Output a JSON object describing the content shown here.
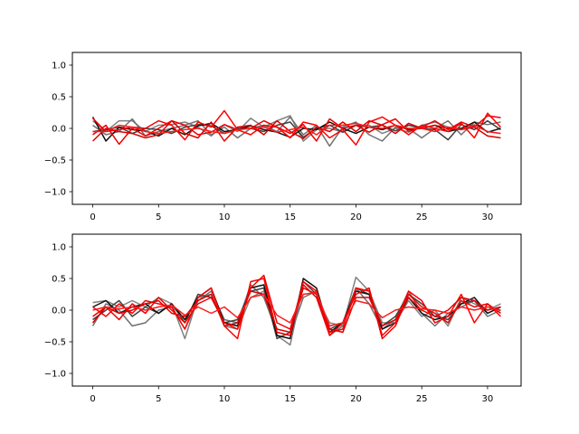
{
  "chart_data": [
    {
      "type": "line",
      "title": "",
      "xlabel": "",
      "ylabel": "",
      "xlim": [
        -1.55,
        32.55
      ],
      "ylim": [
        -1.2,
        1.2
      ],
      "xticks": [
        0,
        5,
        10,
        15,
        20,
        25,
        30
      ],
      "xtick_labels": [
        "0",
        "5",
        "10",
        "15",
        "20",
        "25",
        "30"
      ],
      "yticks": [
        -1.0,
        -0.5,
        0.0,
        0.5,
        1.0
      ],
      "ytick_labels": [
        "−1.0",
        "−0.5",
        "0.0",
        "0.5",
        "1.0"
      ],
      "grid": false,
      "x": [
        0,
        1,
        2,
        3,
        4,
        5,
        6,
        7,
        8,
        9,
        10,
        11,
        12,
        13,
        14,
        15,
        16,
        17,
        18,
        19,
        20,
        21,
        22,
        23,
        24,
        25,
        26,
        27,
        28,
        29,
        30,
        31
      ],
      "series": [
        {
          "color": "#808080",
          "values": [
            0.12,
            -0.05,
            0.12,
            0.12,
            -0.05,
            0.05,
            0.06,
            0.1,
            0.02,
            -0.12,
            0.06,
            -0.05,
            0.16,
            0.02,
            0.12,
            0.2,
            -0.2,
            -0.02,
            0.0,
            -0.06,
            0.05,
            0.05,
            -0.08,
            0.0,
            -0.06,
            0.05,
            0.1,
            0.02,
            0.0,
            0.06,
            -0.05,
            -0.08
          ]
        },
        {
          "color": "#707070",
          "values": [
            0.05,
            -0.1,
            -0.05,
            0.15,
            -0.12,
            -0.05,
            0.0,
            0.05,
            0.12,
            -0.1,
            0.02,
            -0.15,
            0.0,
            0.05,
            -0.05,
            0.18,
            -0.1,
            0.05,
            -0.28,
            0.02,
            0.1,
            -0.1,
            -0.2,
            0.02,
            0.0,
            -0.15,
            0.0,
            0.12,
            -0.1,
            0.1,
            0.06,
            0.1
          ]
        },
        {
          "color": "#404040",
          "values": [
            -0.05,
            -0.02,
            0.02,
            -0.08,
            0.0,
            -0.02,
            -0.08,
            0.02,
            0.06,
            0.04,
            -0.08,
            0.0,
            0.0,
            -0.05,
            0.05,
            0.1,
            -0.14,
            0.0,
            0.05,
            -0.06,
            0.05,
            0.02,
            0.05,
            -0.04,
            0.05,
            0.0,
            -0.02,
            -0.18,
            0.06,
            -0.02,
            0.12,
            -0.02
          ]
        },
        {
          "color": "#101010",
          "values": [
            0.18,
            -0.2,
            0.02,
            -0.02,
            -0.04,
            -0.12,
            0.0,
            -0.1,
            0.04,
            0.08,
            -0.05,
            -0.02,
            0.04,
            -0.02,
            -0.06,
            -0.14,
            0.0,
            -0.02,
            0.1,
            0.0,
            -0.08,
            0.02,
            -0.02,
            0.05,
            -0.02,
            0.0,
            0.05,
            -0.05,
            0.0,
            0.1,
            -0.06,
            0.0
          ]
        },
        {
          "color": "#ff0000",
          "values": [
            0.16,
            -0.05,
            -0.02,
            0.02,
            0.0,
            0.12,
            0.05,
            -0.18,
            0.1,
            0.02,
            0.28,
            -0.02,
            -0.1,
            0.05,
            0.02,
            -0.15,
            0.1,
            0.05,
            -0.15,
            -0.02,
            -0.26,
            0.1,
            0.18,
            0.05,
            -0.1,
            0.05,
            0.0,
            -0.05,
            0.08,
            -0.15,
            0.24,
            0.02
          ]
        },
        {
          "color": "#ee0000",
          "values": [
            -0.1,
            0.05,
            -0.25,
            0.0,
            -0.12,
            0.0,
            0.12,
            0.05,
            -0.1,
            -0.06,
            0.06,
            -0.02,
            0.0,
            0.12,
            0.02,
            -0.08,
            0.06,
            -0.2,
            0.15,
            0.0,
            0.05,
            -0.06,
            0.06,
            0.15,
            -0.05,
            0.02,
            0.12,
            -0.02,
            0.1,
            0.02,
            0.2,
            0.17
          ]
        },
        {
          "color": "#dd0000",
          "values": [
            -0.2,
            0.0,
            -0.05,
            -0.08,
            -0.15,
            -0.1,
            0.12,
            -0.08,
            -0.15,
            0.1,
            -0.2,
            0.02,
            0.05,
            -0.1,
            0.12,
            -0.05,
            -0.16,
            0.02,
            -0.05,
            0.1,
            -0.05,
            0.12,
            0.05,
            -0.08,
            0.08,
            0.0,
            0.05,
            0.0,
            -0.02,
            0.02,
            -0.12,
            -0.15
          ]
        },
        {
          "color": "#ff1a1a",
          "values": [
            -0.05,
            -0.05,
            0.05,
            0.02,
            -0.05,
            -0.08,
            -0.05,
            -0.02,
            0.0,
            -0.05,
            -0.08,
            -0.02,
            0.0,
            0.02,
            -0.06,
            -0.02,
            0.02,
            -0.1,
            0.05,
            0.05,
            0.08,
            0.02,
            0.0,
            0.05,
            0.0,
            0.0,
            -0.05,
            0.02,
            -0.02,
            0.05,
            -0.05,
            -0.08
          ]
        }
      ]
    },
    {
      "type": "line",
      "title": "",
      "xlabel": "",
      "ylabel": "",
      "xlim": [
        -1.55,
        32.55
      ],
      "ylim": [
        -1.2,
        1.2
      ],
      "xticks": [
        0,
        5,
        10,
        15,
        20,
        25,
        30
      ],
      "xtick_labels": [
        "0",
        "5",
        "10",
        "15",
        "20",
        "25",
        "30"
      ],
      "yticks": [
        -1.0,
        -0.5,
        0.0,
        0.5,
        1.0
      ],
      "ytick_labels": [
        "−1.0",
        "−0.5",
        "0.0",
        "0.5",
        "1.0"
      ],
      "grid": false,
      "x": [
        0,
        1,
        2,
        3,
        4,
        5,
        6,
        7,
        8,
        9,
        10,
        11,
        12,
        13,
        14,
        15,
        16,
        17,
        18,
        19,
        20,
        21,
        22,
        23,
        24,
        25,
        26,
        27,
        28,
        29,
        30,
        31
      ],
      "series": [
        {
          "color": "#808080",
          "values": [
            0.12,
            0.15,
            0.05,
            0.15,
            0.05,
            0.2,
            0.1,
            -0.45,
            0.2,
            0.25,
            -0.25,
            -0.3,
            0.2,
            0.3,
            -0.4,
            -0.55,
            0.4,
            0.2,
            -0.2,
            -0.25,
            0.52,
            0.3,
            -0.2,
            -0.2,
            0.15,
            -0.1,
            0.0,
            -0.25,
            0.2,
            0.1,
            0.0,
            0.1
          ]
        },
        {
          "color": "#707070",
          "values": [
            -0.25,
            0.1,
            0.0,
            -0.25,
            -0.2,
            0.0,
            0.05,
            -0.3,
            0.15,
            0.3,
            -0.15,
            -0.2,
            0.4,
            0.2,
            -0.35,
            -0.4,
            0.2,
            0.3,
            -0.4,
            -0.25,
            0.35,
            0.1,
            -0.3,
            -0.15,
            0.3,
            -0.05,
            -0.25,
            -0.05,
            0.05,
            0.15,
            -0.1,
            0.0
          ]
        },
        {
          "color": "#404040",
          "values": [
            -0.15,
            0.0,
            0.15,
            -0.1,
            0.05,
            -0.05,
            0.1,
            -0.2,
            0.25,
            0.2,
            -0.2,
            -0.15,
            0.3,
            0.35,
            -0.45,
            -0.35,
            0.45,
            0.25,
            -0.3,
            -0.2,
            0.35,
            0.25,
            -0.25,
            -0.1,
            0.25,
            0.1,
            -0.1,
            -0.15,
            0.1,
            0.15,
            -0.05,
            0.05
          ]
        },
        {
          "color": "#101010",
          "values": [
            0.05,
            0.15,
            -0.05,
            0.05,
            0.1,
            -0.05,
            0.1,
            -0.15,
            0.2,
            0.35,
            -0.2,
            -0.25,
            0.35,
            0.4,
            -0.4,
            -0.45,
            0.5,
            0.35,
            -0.35,
            -0.2,
            0.3,
            0.25,
            -0.3,
            -0.2,
            0.2,
            -0.05,
            -0.15,
            -0.1,
            0.1,
            0.2,
            -0.05,
            0.05
          ]
        },
        {
          "color": "#ff0000",
          "values": [
            0.05,
            -0.1,
            0.1,
            -0.05,
            0.15,
            0.1,
            0.05,
            -0.3,
            0.2,
            0.35,
            -0.25,
            -0.45,
            0.45,
            0.5,
            -0.35,
            -0.4,
            0.45,
            0.3,
            -0.35,
            -0.3,
            0.35,
            0.3,
            -0.4,
            -0.2,
            0.3,
            0.15,
            -0.2,
            -0.1,
            0.25,
            -0.2,
            0.1,
            -0.1
          ]
        },
        {
          "color": "#ee0000",
          "values": [
            -0.1,
            0.05,
            -0.15,
            0.1,
            -0.05,
            0.2,
            0.0,
            -0.2,
            0.1,
            0.2,
            -0.2,
            -0.3,
            0.35,
            0.55,
            -0.2,
            -0.3,
            0.4,
            0.2,
            -0.4,
            -0.2,
            0.25,
            0.35,
            -0.45,
            -0.25,
            0.25,
            0.05,
            -0.05,
            -0.2,
            0.15,
            0.05,
            0.1,
            -0.05
          ]
        },
        {
          "color": "#dd0000",
          "values": [
            -0.2,
            0.05,
            -0.05,
            0.0,
            0.1,
            0.15,
            -0.05,
            -0.1,
            0.15,
            0.25,
            -0.25,
            -0.2,
            0.3,
            0.25,
            -0.3,
            -0.35,
            0.35,
            0.25,
            -0.3,
            -0.35,
            0.2,
            0.2,
            -0.25,
            -0.15,
            0.2,
            0.0,
            -0.1,
            0.0,
            0.2,
            0.15,
            0.0,
            0.05
          ]
        },
        {
          "color": "#ff1a1a",
          "values": [
            0.0,
            0.05,
            0.02,
            0.05,
            0.0,
            0.05,
            0.08,
            -0.08,
            0.05,
            -0.05,
            0.05,
            -0.12,
            0.2,
            0.25,
            -0.08,
            -0.2,
            0.25,
            0.28,
            -0.25,
            -0.2,
            0.15,
            0.1,
            -0.12,
            0.0,
            0.05,
            0.02,
            0.0,
            -0.05,
            0.05,
            0.0,
            0.05,
            0.0
          ]
        }
      ]
    }
  ]
}
